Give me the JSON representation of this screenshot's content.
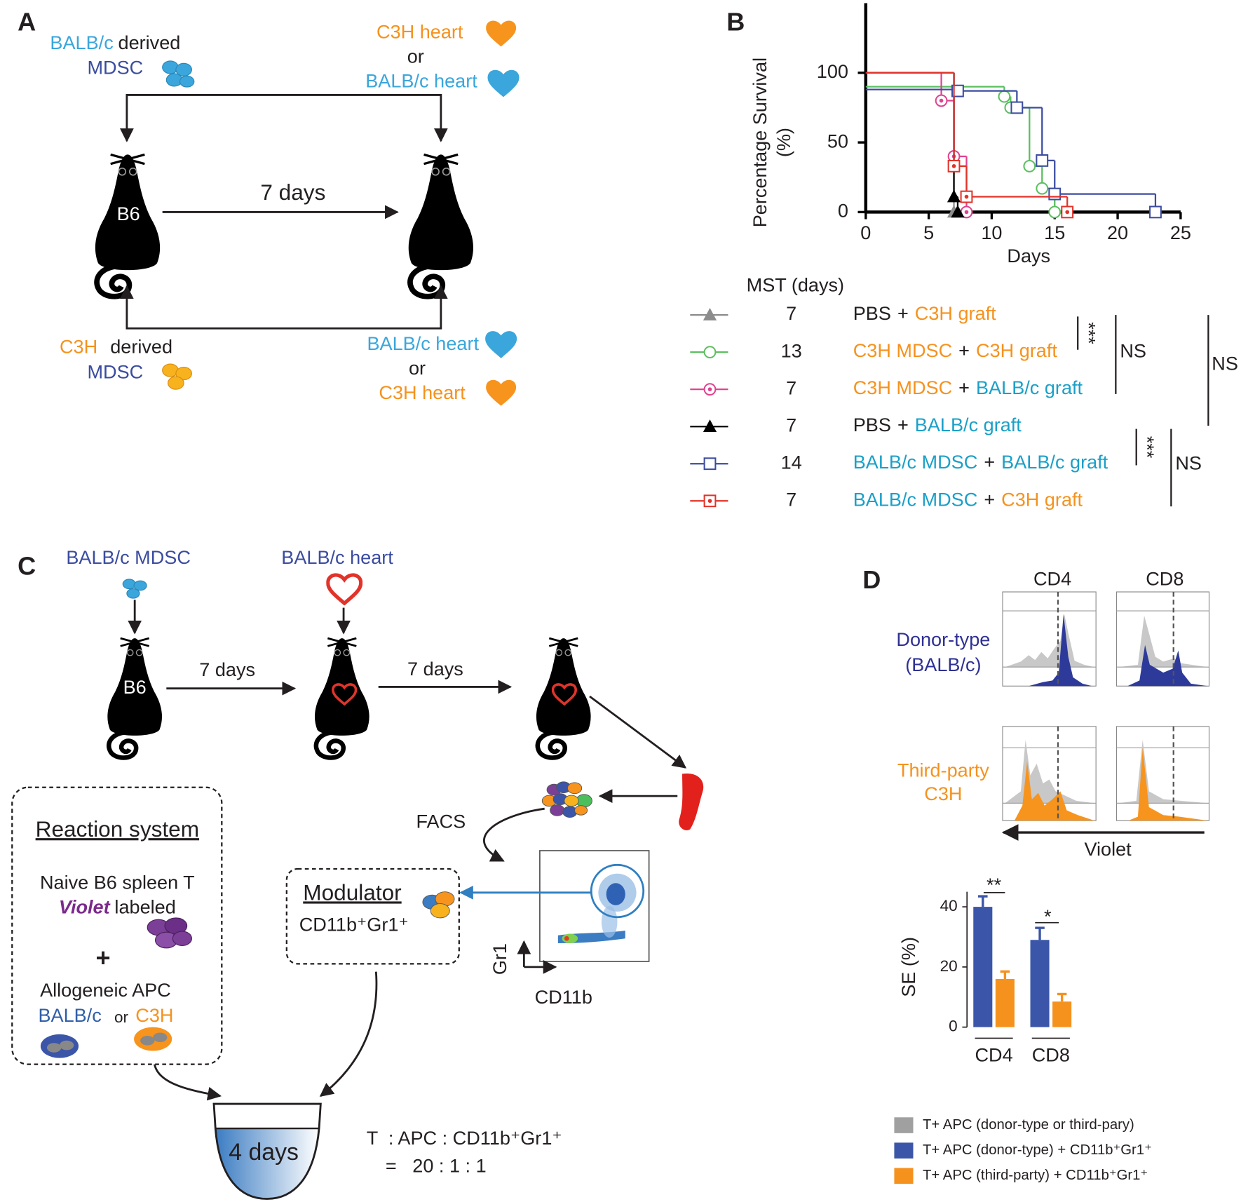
{
  "panels": {
    "a": {
      "letter": "A",
      "mdsc_source_top": [
        "BALB/c",
        "derived"
      ],
      "mdsc_top": "MDSC",
      "heart_top": [
        "C3H heart",
        "or",
        "BALB/c heart"
      ],
      "mouse": "B6",
      "interval": "7 days",
      "mdsc_source_bottom": [
        "C3H",
        "derived"
      ],
      "mdsc_bottom": "MDSC",
      "heart_bottom": [
        "BALB/c heart",
        "or",
        "C3H heart"
      ]
    },
    "b": {
      "letter": "B"
    },
    "c": {
      "letter": "C",
      "donor_cells": "BALB/c MDSC",
      "donor_heart": "BALB/c heart",
      "mouse": "B6",
      "interval_1": "7 days",
      "interval_2": "7 days",
      "sort": "FACS",
      "reaction_title": "Reaction system",
      "responder": "Naive B6 spleen T",
      "label_stain": "Violet",
      "label_word": "labeled",
      "plus": "+",
      "apc": "Allogeneic APC",
      "apc_options": [
        "BALB/c",
        "or",
        "C3H"
      ],
      "modulator_title": "Modulator",
      "modulator": "CD11b⁺Gr1⁺",
      "gate_y": "Gr1",
      "gate_x": "CD11b",
      "culture": "4 days",
      "ratio_header": "T  : APC : CD11b⁺Gr1⁺",
      "ratio": "=   20 : 1 : 1"
    },
    "d": {
      "letter": "D",
      "columns": [
        "CD4",
        "CD8"
      ],
      "rows": [
        [
          "Donor-type",
          "(BALB/c)"
        ],
        [
          "Third-party",
          "C3H"
        ]
      ],
      "axis": "Violet"
    }
  },
  "chart_data": [
    {
      "type": "line",
      "step": true,
      "ylabel": [
        "Percentage Survival",
        "(%)"
      ],
      "xlabel": "Days",
      "xlim": [
        0,
        25
      ],
      "xticks": [
        0,
        5,
        10,
        15,
        20,
        25
      ],
      "ylim": [
        0,
        150
      ],
      "yticks": [
        0,
        50,
        100
      ],
      "legend_header": "MST (days)",
      "annotations": [
        "***",
        "NS",
        "NS",
        "***",
        "NS"
      ],
      "series": [
        {
          "name": [
            {
              "text": "PBS",
              "color": "#231f20"
            },
            {
              "text": "+",
              "color": "#231f20"
            },
            {
              "text": "C3H graft",
              "color": "#f5921e"
            }
          ],
          "mst": 7,
          "color": "#8c8c8c",
          "marker": "triangle",
          "marker_fill": "filled",
          "x": [
            0,
            7
          ],
          "values": [
            100,
            0
          ]
        },
        {
          "name": [
            {
              "text": "C3H MDSC",
              "color": "#f5921e"
            },
            {
              "text": "+",
              "color": "#231f20"
            },
            {
              "text": "C3H graft",
              "color": "#f5921e"
            }
          ],
          "mst": 13,
          "color": "#5bbf5f",
          "marker": "circle",
          "marker_fill": "open",
          "x": [
            0,
            11,
            11.5,
            13,
            14,
            15
          ],
          "values": [
            90,
            83,
            75,
            33,
            17,
            0
          ]
        },
        {
          "name": [
            {
              "text": "C3H MDSC",
              "color": "#f5921e"
            },
            {
              "text": "+",
              "color": "#231f20"
            },
            {
              "text": "BALB/c graft",
              "color": "#1aa0c8"
            }
          ],
          "mst": 7,
          "color": "#e0428f",
          "marker": "circle",
          "marker_fill": "dot",
          "x": [
            0,
            6,
            7,
            8
          ],
          "values": [
            100,
            80,
            40,
            0
          ]
        },
        {
          "name": [
            {
              "text": "PBS",
              "color": "#231f20"
            },
            {
              "text": "+",
              "color": "#231f20"
            },
            {
              "text": "BALB/c graft",
              "color": "#1aa0c8"
            }
          ],
          "mst": 7,
          "color": "#000000",
          "marker": "triangle",
          "marker_fill": "filled",
          "x": [
            0,
            7,
            7.3
          ],
          "values": [
            100,
            11,
            0
          ]
        },
        {
          "name": [
            {
              "text": "BALB/c MDSC",
              "color": "#1aa0c8"
            },
            {
              "text": "+",
              "color": "#231f20"
            },
            {
              "text": "BALB/c graft",
              "color": "#1aa0c8"
            }
          ],
          "mst": 14,
          "color": "#3b4ca0",
          "marker": "square",
          "marker_fill": "open",
          "x": [
            0,
            7.3,
            12,
            14,
            15,
            23
          ],
          "values": [
            88,
            87,
            75,
            37,
            13,
            0
          ]
        },
        {
          "name": [
            {
              "text": "BALB/c MDSC",
              "color": "#1aa0c8"
            },
            {
              "text": "+",
              "color": "#231f20"
            },
            {
              "text": "C3H graft",
              "color": "#f5921e"
            }
          ],
          "mst": 7,
          "color": "#e2332a",
          "marker": "square",
          "marker_fill": "dot",
          "x": [
            0,
            7,
            8,
            16
          ],
          "values": [
            100,
            33,
            11,
            0
          ]
        }
      ]
    },
    {
      "type": "bar",
      "ylabel": "SE (%)",
      "categories": [
        "CD4",
        "CD8"
      ],
      "ylim": [
        0,
        45
      ],
      "yticks": [
        0,
        20,
        40
      ],
      "annotations": [
        "**",
        "*"
      ],
      "reference": {
        "name": "T+ APC (donor-type or third-pary)",
        "color": "#a0a0a0"
      },
      "series": [
        {
          "name": "T+ APC (donor-type) + CD11b⁺Gr1⁺",
          "color": "#3b55a8",
          "values": [
            40,
            29
          ],
          "errors": [
            3.5,
            4
          ]
        },
        {
          "name": "T+ APC (third-party) + CD11b⁺Gr1⁺",
          "color": "#f5921e",
          "values": [
            16,
            8.5
          ],
          "errors": [
            2.5,
            2.5
          ]
        }
      ]
    }
  ]
}
